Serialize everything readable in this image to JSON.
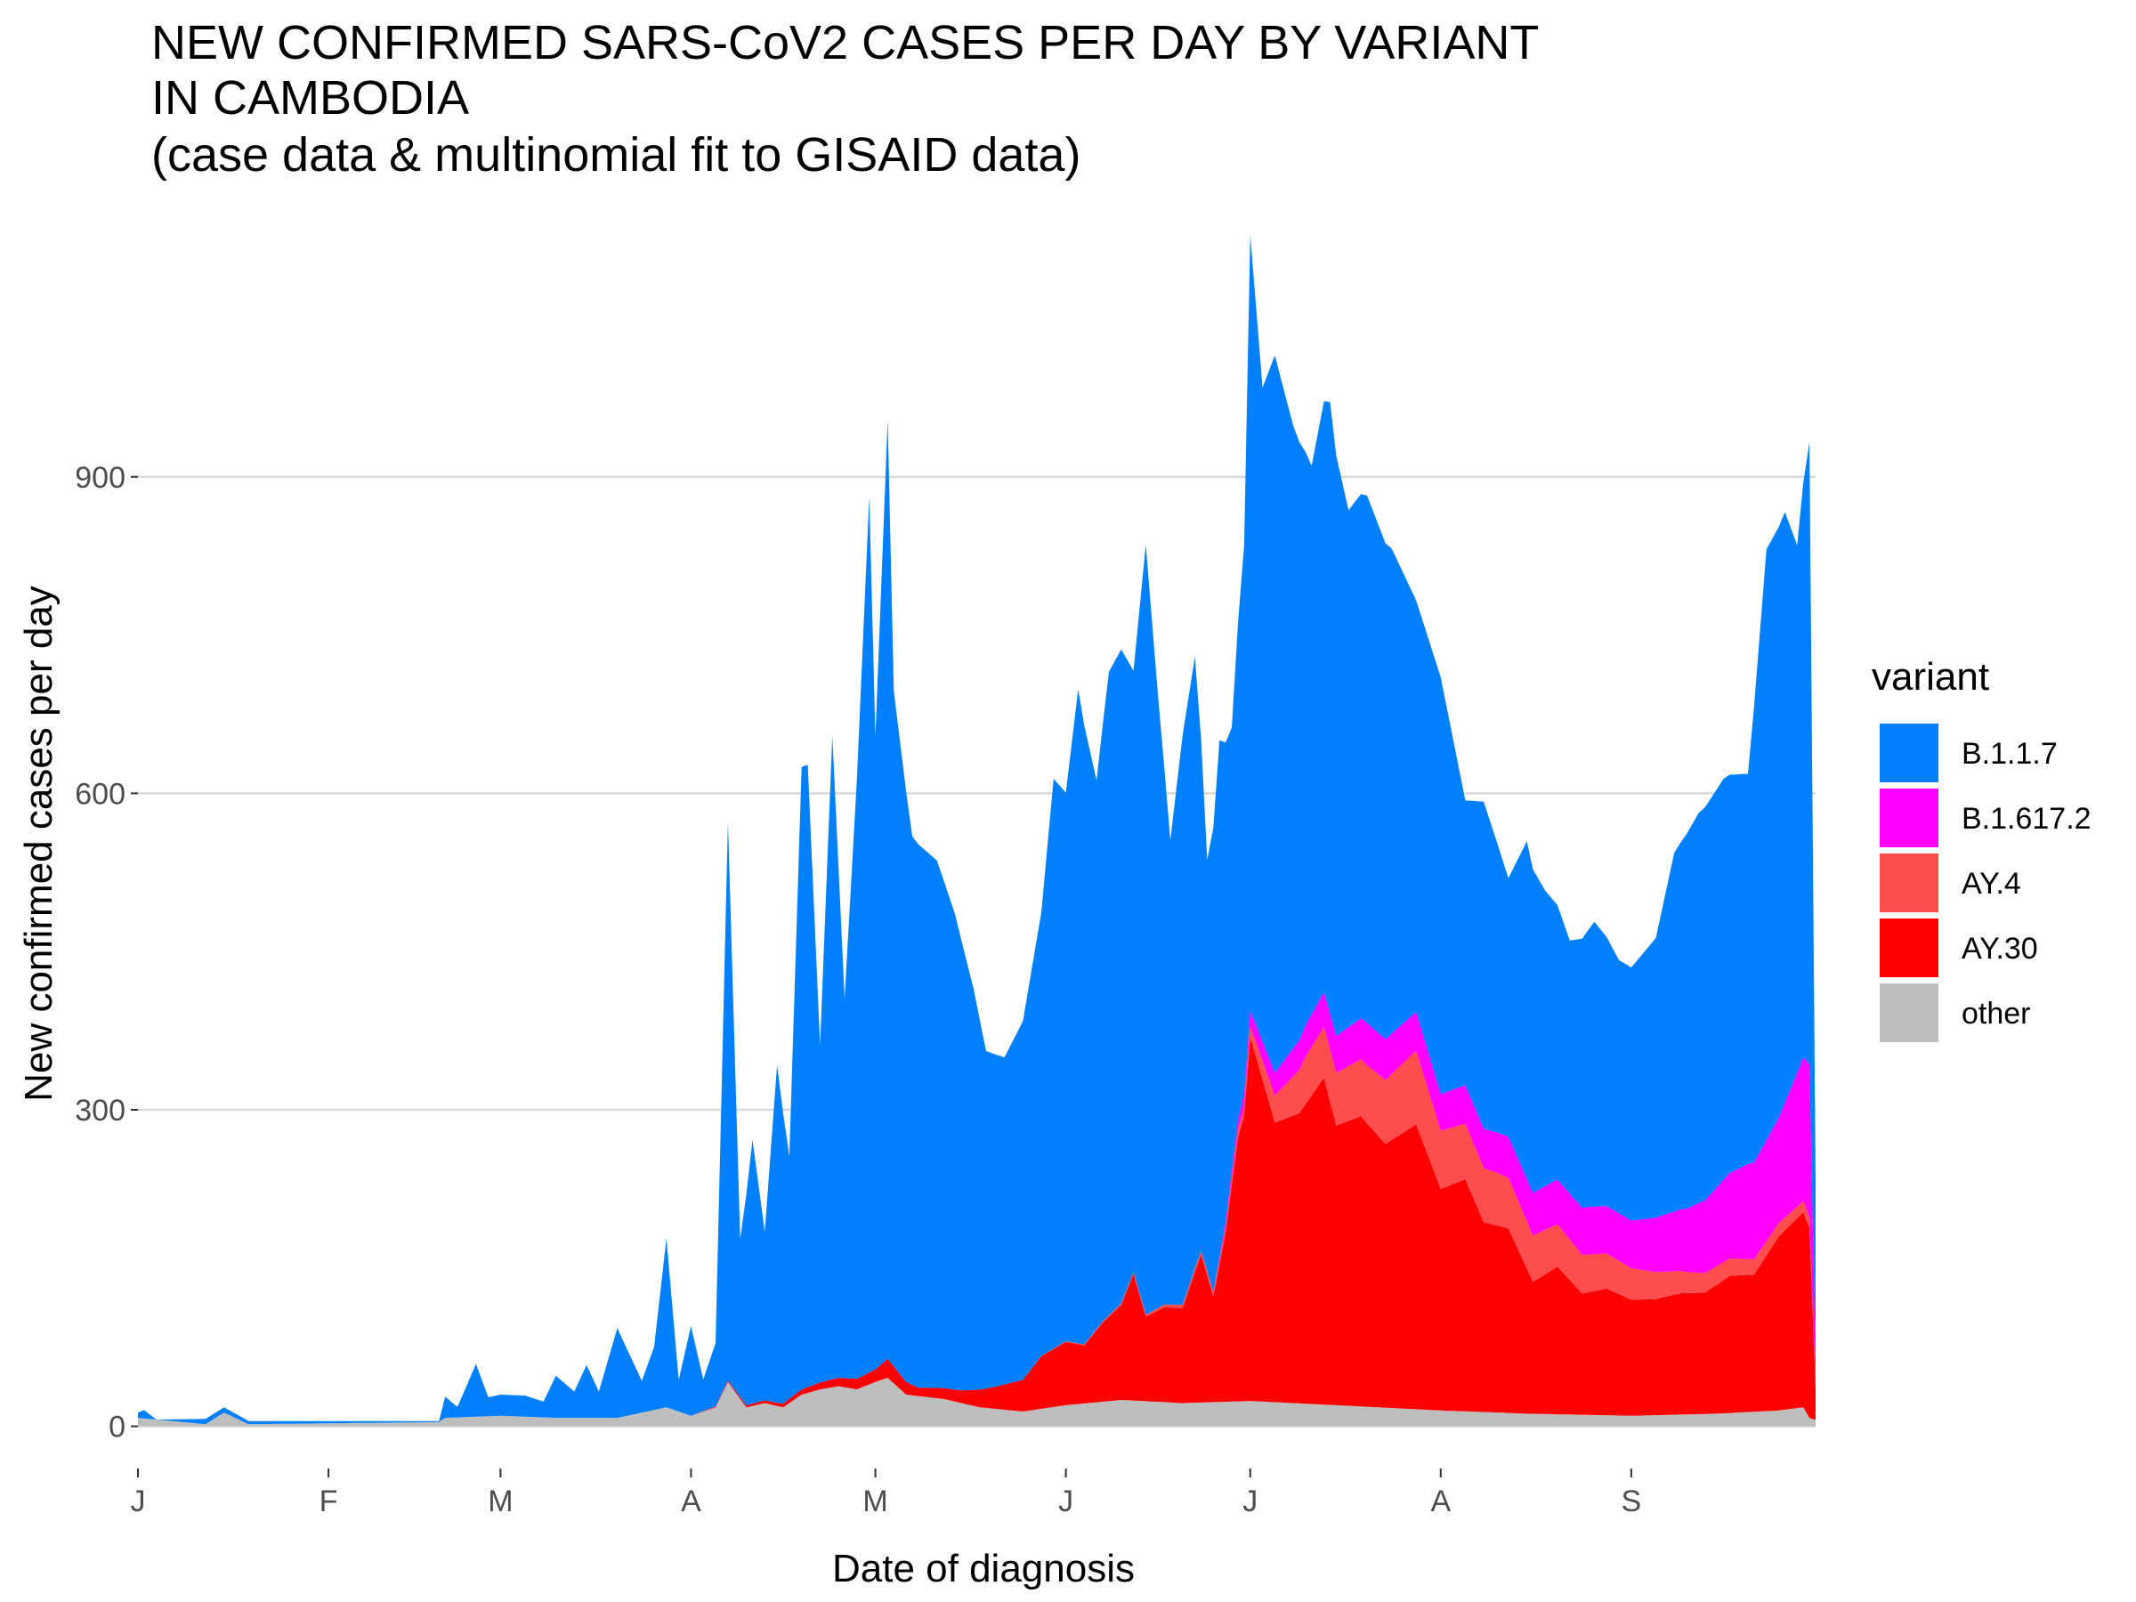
{
  "chart_data": {
    "type": "area",
    "stacked": true,
    "title_lines": [
      "NEW CONFIRMED SARS-CoV2 CASES PER DAY BY VARIANT",
      "IN CAMBODIA",
      "(case data & multinomial fit to GISAID data)"
    ],
    "xlabel": "Date of diagnosis",
    "ylabel": "New confirmed cases per day",
    "x_range": [
      "2021-01-01",
      "2021-10-01"
    ],
    "ylim": [
      -40,
      1120
    ],
    "y_ticks": [
      0,
      300,
      600,
      900
    ],
    "x_ticks": [
      {
        "date": "2021-01-01",
        "label": "J"
      },
      {
        "date": "2021-02-01",
        "label": "F"
      },
      {
        "date": "2021-03-01",
        "label": "M"
      },
      {
        "date": "2021-04-01",
        "label": "A"
      },
      {
        "date": "2021-05-01",
        "label": "M"
      },
      {
        "date": "2021-06-01",
        "label": "J"
      },
      {
        "date": "2021-07-01",
        "label": "J"
      },
      {
        "date": "2021-08-01",
        "label": "A"
      },
      {
        "date": "2021-09-01",
        "label": "S"
      }
    ],
    "grid": "horizontal",
    "legend_placement": "right",
    "legend_title": "variant",
    "series": [
      {
        "name": "other",
        "color": "#bebebe",
        "points": [
          [
            "2021-01-01",
            8
          ],
          [
            "2021-01-12",
            2
          ],
          [
            "2021-01-15",
            13
          ],
          [
            "2021-01-19",
            2
          ],
          [
            "2021-02-19",
            4
          ],
          [
            "2021-02-20",
            8
          ],
          [
            "2021-03-01",
            10
          ],
          [
            "2021-03-10",
            8
          ],
          [
            "2021-03-20",
            8
          ],
          [
            "2021-03-28",
            18
          ],
          [
            "2021-04-01",
            10
          ],
          [
            "2021-04-05",
            18
          ],
          [
            "2021-04-07",
            42
          ],
          [
            "2021-04-10",
            18
          ],
          [
            "2021-04-13",
            22
          ],
          [
            "2021-04-16",
            18
          ],
          [
            "2021-04-19",
            30
          ],
          [
            "2021-04-22",
            35
          ],
          [
            "2021-04-25",
            38
          ],
          [
            "2021-04-28",
            35
          ],
          [
            "2021-05-01",
            42
          ],
          [
            "2021-05-03",
            46
          ],
          [
            "2021-05-06",
            30
          ],
          [
            "2021-05-12",
            26
          ],
          [
            "2021-05-18",
            18
          ],
          [
            "2021-05-25",
            14
          ],
          [
            "2021-06-01",
            20
          ],
          [
            "2021-06-10",
            25
          ],
          [
            "2021-06-20",
            22
          ],
          [
            "2021-07-01",
            24
          ],
          [
            "2021-07-15",
            20
          ],
          [
            "2021-08-01",
            15
          ],
          [
            "2021-08-15",
            12
          ],
          [
            "2021-09-01",
            10
          ],
          [
            "2021-09-15",
            12
          ],
          [
            "2021-09-25",
            15
          ],
          [
            "2021-09-29",
            18
          ],
          [
            "2021-09-30",
            8
          ],
          [
            "2021-10-01",
            6
          ]
        ]
      },
      {
        "name": "AY.30",
        "color": "#ff0000",
        "points": [
          [
            "2021-01-01",
            0
          ],
          [
            "2021-04-01",
            0
          ],
          [
            "2021-04-15",
            3
          ],
          [
            "2021-04-25",
            8
          ],
          [
            "2021-05-01",
            12
          ],
          [
            "2021-05-03",
            18
          ],
          [
            "2021-05-08",
            8
          ],
          [
            "2021-05-15",
            12
          ],
          [
            "2021-05-20",
            20
          ],
          [
            "2021-05-25",
            30
          ],
          [
            "2021-05-28",
            50
          ],
          [
            "2021-06-01",
            60
          ],
          [
            "2021-06-04",
            55
          ],
          [
            "2021-06-07",
            75
          ],
          [
            "2021-06-10",
            90
          ],
          [
            "2021-06-12",
            120
          ],
          [
            "2021-06-14",
            80
          ],
          [
            "2021-06-17",
            90
          ],
          [
            "2021-06-20",
            90
          ],
          [
            "2021-06-23",
            140
          ],
          [
            "2021-06-25",
            100
          ],
          [
            "2021-06-27",
            160
          ],
          [
            "2021-06-29",
            250
          ],
          [
            "2021-06-30",
            270
          ],
          [
            "2021-07-01",
            345
          ],
          [
            "2021-07-05",
            265
          ],
          [
            "2021-07-09",
            275
          ],
          [
            "2021-07-13",
            310
          ],
          [
            "2021-07-15",
            265
          ],
          [
            "2021-07-19",
            275
          ],
          [
            "2021-07-23",
            250
          ],
          [
            "2021-07-28",
            270
          ],
          [
            "2021-08-01",
            210
          ],
          [
            "2021-08-05",
            220
          ],
          [
            "2021-08-08",
            180
          ],
          [
            "2021-08-12",
            175
          ],
          [
            "2021-08-16",
            125
          ],
          [
            "2021-08-20",
            140
          ],
          [
            "2021-08-24",
            115
          ],
          [
            "2021-08-28",
            120
          ],
          [
            "2021-09-01",
            110
          ],
          [
            "2021-09-05",
            110
          ],
          [
            "2021-09-09",
            115
          ],
          [
            "2021-09-13",
            115
          ],
          [
            "2021-09-17",
            130
          ],
          [
            "2021-09-21",
            130
          ],
          [
            "2021-09-25",
            165
          ],
          [
            "2021-09-29",
            185
          ],
          [
            "2021-09-30",
            180
          ],
          [
            "2021-10-01",
            30
          ]
        ]
      },
      {
        "name": "AY.4",
        "color": "#ff4d4d",
        "points": [
          [
            "2021-01-01",
            0
          ],
          [
            "2021-05-25",
            0
          ],
          [
            "2021-06-15",
            2
          ],
          [
            "2021-06-27",
            5
          ],
          [
            "2021-07-01",
            10
          ],
          [
            "2021-07-10",
            45
          ],
          [
            "2021-07-20",
            55
          ],
          [
            "2021-07-28",
            70
          ],
          [
            "2021-08-01",
            55
          ],
          [
            "2021-08-10",
            50
          ],
          [
            "2021-08-20",
            40
          ],
          [
            "2021-09-01",
            30
          ],
          [
            "2021-09-10",
            20
          ],
          [
            "2021-09-20",
            15
          ],
          [
            "2021-09-30",
            10
          ],
          [
            "2021-10-01",
            3
          ]
        ]
      },
      {
        "name": "B.1.617.2",
        "color": "#ff00ff",
        "points": [
          [
            "2021-01-01",
            0
          ],
          [
            "2021-06-25",
            0
          ],
          [
            "2021-07-01",
            15
          ],
          [
            "2021-07-10",
            30
          ],
          [
            "2021-07-20",
            40
          ],
          [
            "2021-08-01",
            35
          ],
          [
            "2021-08-15",
            40
          ],
          [
            "2021-08-25",
            45
          ],
          [
            "2021-09-01",
            45
          ],
          [
            "2021-09-10",
            60
          ],
          [
            "2021-09-20",
            90
          ],
          [
            "2021-09-25",
            100
          ],
          [
            "2021-09-30",
            145
          ],
          [
            "2021-10-01",
            25
          ]
        ]
      },
      {
        "name": "B.1.1.7",
        "color": "#0080ff",
        "points": [
          [
            "2021-01-01",
            5
          ],
          [
            "2021-01-02",
            8
          ],
          [
            "2021-01-04",
            0
          ],
          [
            "2021-01-12",
            5
          ],
          [
            "2021-01-15",
            5
          ],
          [
            "2021-01-19",
            3
          ],
          [
            "2021-02-19",
            1
          ],
          [
            "2021-02-20",
            20
          ],
          [
            "2021-02-22",
            10
          ],
          [
            "2021-02-25",
            50
          ],
          [
            "2021-02-27",
            18
          ],
          [
            "2021-03-01",
            20
          ],
          [
            "2021-03-05",
            20
          ],
          [
            "2021-03-08",
            15
          ],
          [
            "2021-03-10",
            40
          ],
          [
            "2021-03-13",
            25
          ],
          [
            "2021-03-15",
            50
          ],
          [
            "2021-03-17",
            25
          ],
          [
            "2021-03-20",
            85
          ],
          [
            "2021-03-24",
            30
          ],
          [
            "2021-03-26",
            60
          ],
          [
            "2021-03-28",
            160
          ],
          [
            "2021-03-30",
            30
          ],
          [
            "2021-04-01",
            85
          ],
          [
            "2021-04-03",
            30
          ],
          [
            "2021-04-05",
            60
          ],
          [
            "2021-04-07",
            530
          ],
          [
            "2021-04-09",
            150
          ],
          [
            "2021-04-11",
            250
          ],
          [
            "2021-04-13",
            160
          ],
          [
            "2021-04-15",
            320
          ],
          [
            "2021-04-17",
            230
          ],
          [
            "2021-04-19",
            590
          ],
          [
            "2021-04-20",
            590
          ],
          [
            "2021-04-22",
            320
          ],
          [
            "2021-04-24",
            610
          ],
          [
            "2021-04-26",
            360
          ],
          [
            "2021-04-28",
            570
          ],
          [
            "2021-04-30",
            830
          ],
          [
            "2021-05-01",
            600
          ],
          [
            "2021-05-03",
            890
          ],
          [
            "2021-05-04",
            640
          ],
          [
            "2021-05-07",
            520
          ],
          [
            "2021-05-11",
            500
          ],
          [
            "2021-05-14",
            450
          ],
          [
            "2021-05-17",
            380
          ],
          [
            "2021-05-19",
            320
          ],
          [
            "2021-05-22",
            310
          ],
          [
            "2021-05-25",
            340
          ],
          [
            "2021-05-28",
            420
          ],
          [
            "2021-05-30",
            540
          ],
          [
            "2021-06-01",
            520
          ],
          [
            "2021-06-03",
            620
          ],
          [
            "2021-06-06",
            520
          ],
          [
            "2021-06-08",
            610
          ],
          [
            "2021-06-10",
            620
          ],
          [
            "2021-06-12",
            570
          ],
          [
            "2021-06-14",
            730
          ],
          [
            "2021-06-16",
            580
          ],
          [
            "2021-06-18",
            440
          ],
          [
            "2021-06-20",
            540
          ],
          [
            "2021-06-22",
            580
          ],
          [
            "2021-06-24",
            390
          ],
          [
            "2021-06-26",
            490
          ],
          [
            "2021-06-28",
            420
          ],
          [
            "2021-06-30",
            520
          ],
          [
            "2021-07-01",
            735
          ],
          [
            "2021-07-03",
            620
          ],
          [
            "2021-07-05",
            680
          ],
          [
            "2021-07-08",
            590
          ],
          [
            "2021-07-11",
            520
          ],
          [
            "2021-07-14",
            580
          ],
          [
            "2021-07-17",
            490
          ],
          [
            "2021-07-20",
            500
          ],
          [
            "2021-07-24",
            460
          ],
          [
            "2021-07-28",
            390
          ],
          [
            "2021-08-01",
            395
          ],
          [
            "2021-08-05",
            270
          ],
          [
            "2021-08-08",
            310
          ],
          [
            "2021-08-12",
            245
          ],
          [
            "2021-08-15",
            320
          ],
          [
            "2021-08-18",
            280
          ],
          [
            "2021-08-22",
            240
          ],
          [
            "2021-08-26",
            270
          ],
          [
            "2021-08-30",
            240
          ],
          [
            "2021-09-01",
            240
          ],
          [
            "2021-09-05",
            265
          ],
          [
            "2021-09-08",
            340
          ],
          [
            "2021-09-12",
            370
          ],
          [
            "2021-09-16",
            380
          ],
          [
            "2021-09-20",
            370
          ],
          [
            "2021-09-23",
            560
          ],
          [
            "2021-09-26",
            560
          ],
          [
            "2021-09-28",
            500
          ],
          [
            "2021-09-30",
            590
          ],
          [
            "2021-10-01",
            170
          ]
        ]
      }
    ],
    "legend_order": [
      "B.1.1.7",
      "B.1.617.2",
      "AY.4",
      "AY.30",
      "other"
    ]
  }
}
